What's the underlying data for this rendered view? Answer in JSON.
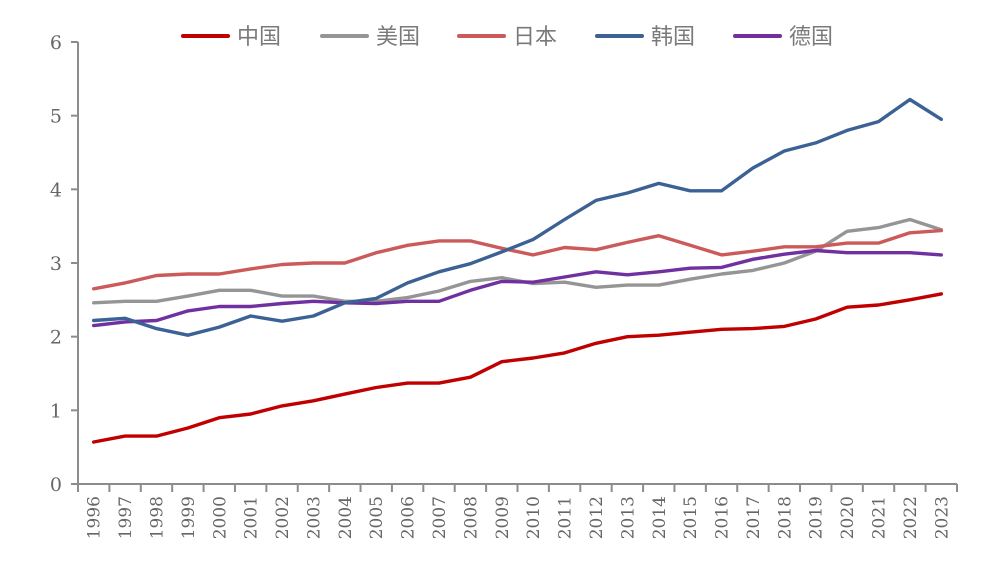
{
  "chart_data": {
    "type": "line",
    "title": "",
    "xlabel": "",
    "ylabel": "",
    "ylim": [
      0,
      6
    ],
    "yticks": [
      "0",
      "1",
      "2",
      "3",
      "4",
      "5",
      "6"
    ],
    "grid": false,
    "legend_position": "top-center",
    "x": [
      "1996",
      "1997",
      "1998",
      "1999",
      "2000",
      "2001",
      "2002",
      "2003",
      "2004",
      "2005",
      "2006",
      "2007",
      "2008",
      "2009",
      "2010",
      "2011",
      "2012",
      "2013",
      "2014",
      "2015",
      "2016",
      "2017",
      "2018",
      "2019",
      "2020",
      "2021",
      "2022",
      "2023"
    ],
    "series": [
      {
        "name": "中国",
        "color": "#c00000",
        "values": [
          0.57,
          0.65,
          0.65,
          0.76,
          0.9,
          0.95,
          1.06,
          1.13,
          1.22,
          1.31,
          1.37,
          1.37,
          1.45,
          1.66,
          1.71,
          1.78,
          1.91,
          2.0,
          2.02,
          2.06,
          2.1,
          2.11,
          2.14,
          2.24,
          2.4,
          2.43,
          2.5,
          2.58
        ]
      },
      {
        "name": "美国",
        "color": "#959595",
        "values": [
          2.46,
          2.48,
          2.48,
          2.55,
          2.63,
          2.63,
          2.55,
          2.55,
          2.48,
          2.48,
          2.53,
          2.62,
          2.75,
          2.8,
          2.72,
          2.74,
          2.67,
          2.7,
          2.7,
          2.78,
          2.85,
          2.9,
          3.0,
          3.16,
          3.43,
          3.48,
          3.59,
          3.45
        ]
      },
      {
        "name": "日本",
        "color": "#cc5a5a",
        "values": [
          2.65,
          2.73,
          2.83,
          2.85,
          2.85,
          2.92,
          2.98,
          3.0,
          3.0,
          3.14,
          3.24,
          3.3,
          3.3,
          3.2,
          3.11,
          3.21,
          3.18,
          3.28,
          3.37,
          3.24,
          3.11,
          3.16,
          3.22,
          3.22,
          3.27,
          3.27,
          3.41,
          3.44
        ]
      },
      {
        "name": "韩国",
        "color": "#3c6194",
        "values": [
          2.22,
          2.25,
          2.11,
          2.02,
          2.13,
          2.28,
          2.21,
          2.28,
          2.46,
          2.52,
          2.73,
          2.88,
          2.99,
          3.15,
          3.32,
          3.59,
          3.85,
          3.95,
          4.08,
          3.98,
          3.98,
          4.29,
          4.52,
          4.63,
          4.8,
          4.92,
          5.22,
          4.95
        ]
      },
      {
        "name": "德国",
        "color": "#7030a0",
        "values": [
          2.15,
          2.2,
          2.22,
          2.35,
          2.41,
          2.41,
          2.45,
          2.48,
          2.46,
          2.45,
          2.48,
          2.48,
          2.63,
          2.75,
          2.74,
          2.81,
          2.88,
          2.84,
          2.88,
          2.93,
          2.94,
          3.05,
          3.12,
          3.17,
          3.14,
          3.14,
          3.14,
          3.11
        ]
      }
    ]
  }
}
